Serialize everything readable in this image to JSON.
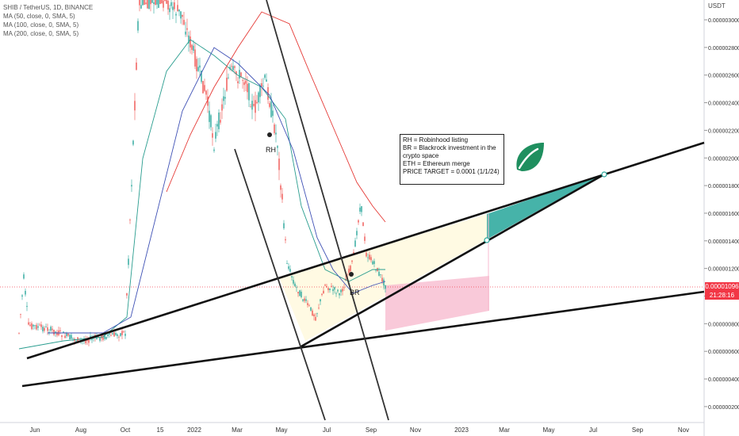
{
  "chart_data": {
    "type": "line",
    "title": "SHIB / TetherUS, 1D, BINANCE",
    "legend": [
      "MA (50, close, 0, SMA, 5)",
      "MA (100, close, 0, SMA, 5)",
      "MA (200, close, 0, SMA, 5)"
    ],
    "y_unit": "USDT",
    "y_ticks": [
      "0.000003000",
      "0.000002800",
      "0.000002600",
      "0.000002400",
      "0.000002200",
      "0.000002000",
      "0.000001800",
      "0.000001600",
      "0.000001400",
      "0.000001200",
      "0.000001000",
      "0.000000800",
      "0.000000600",
      "0.000000400",
      "0.000000200"
    ],
    "ylim": [
      1.3e-07,
      3.15e-06
    ],
    "x_ticks": [
      "Jun",
      "Aug",
      "Oct",
      "15",
      "2022",
      "Mar",
      "May",
      "Jul",
      "Sep",
      "Nov",
      "2023",
      "Mar",
      "May",
      "Jul",
      "Sep",
      "Nov"
    ],
    "current_price": "0.00001096",
    "countdown": "21:28:16",
    "markers": [
      "RH",
      "BR"
    ],
    "note_lines": [
      "RH = Robinhood listing",
      "BR = Blackrock investment in the crypto space",
      "ETH = Ethereum merge",
      "",
      "PRICE TARGET = 0.0001 (1/1/24)"
    ],
    "colors": {
      "price_line": "#f23645",
      "ma50": "#2a9d8f",
      "ma100": "#3f51b5",
      "ma200": "#e53935",
      "target_zone": "#26a69a",
      "risk_zone": "#f8bbd0",
      "gain_zone": "#fff9e0"
    }
  },
  "icons": [
    "leaf-icon"
  ]
}
